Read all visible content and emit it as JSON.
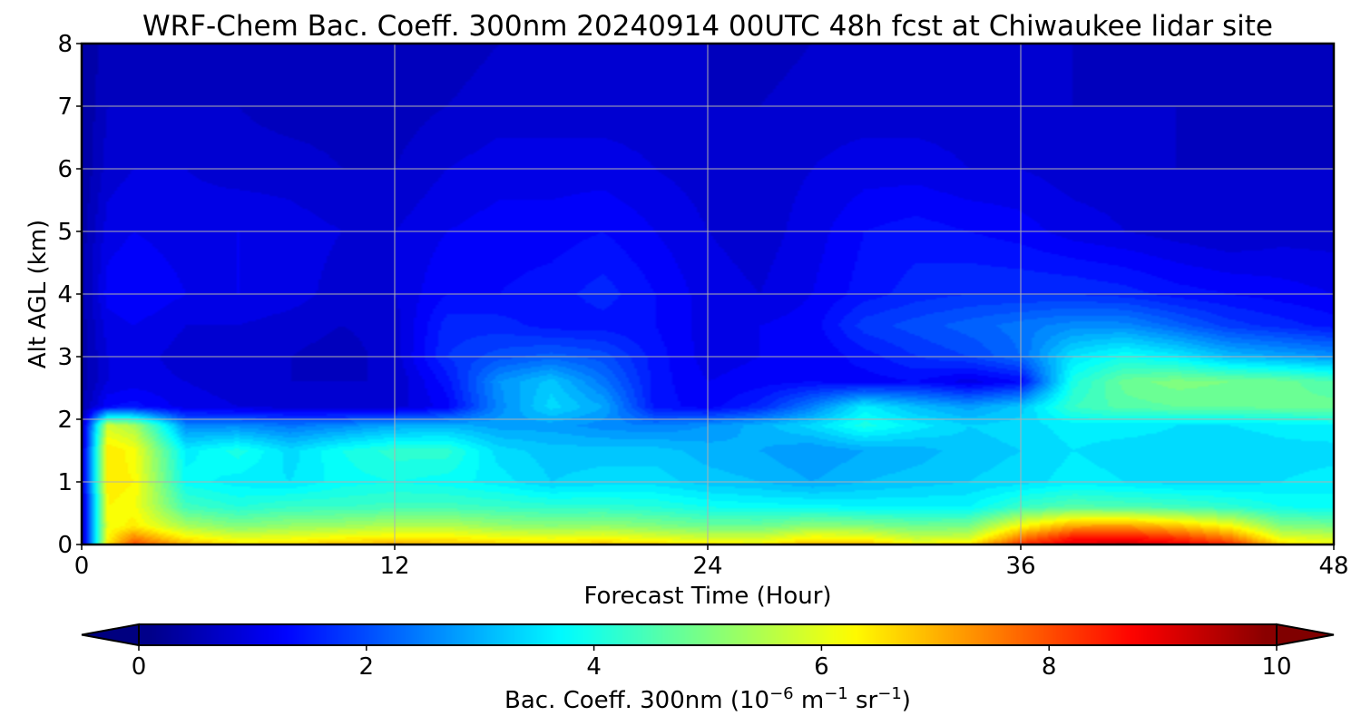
{
  "chart_data": {
    "type": "heatmap",
    "title": "WRF-Chem Bac. Coeff. 300nm  20240914 00UTC 48h fcst at Chiwaukee lidar site",
    "xlabel": "Forecast Time (Hour)",
    "ylabel": "Alt AGL (km)",
    "xlim": [
      0,
      48
    ],
    "ylim": [
      0,
      8
    ],
    "xticks": [
      "0",
      "12",
      "24",
      "36",
      "48"
    ],
    "yticks": [
      "0",
      "1",
      "2",
      "3",
      "4",
      "5",
      "6",
      "7",
      "8"
    ],
    "grid": true,
    "colormap": "jet",
    "colorbar": {
      "orientation": "horizontal",
      "range": [
        0,
        10
      ],
      "ticks": [
        "0",
        "2",
        "4",
        "6",
        "8",
        "10"
      ],
      "extend": "both",
      "label_prefix": "Bac. Coeff. 300nm  (10",
      "label_exp1": "−6",
      "label_mid": " m",
      "label_exp2": "−1",
      "label_mid2": " sr",
      "label_exp3": "−1",
      "label_suffix": ")"
    },
    "hours": [
      0,
      1,
      2,
      4,
      6,
      8,
      10,
      12,
      14,
      16,
      18,
      20,
      22,
      24,
      26,
      28,
      30,
      32,
      34,
      36,
      38,
      40,
      42,
      44,
      46,
      48
    ],
    "altitudes_km": [
      0,
      0.1,
      0.3,
      0.6,
      1.0,
      1.5,
      1.9,
      2.2,
      2.6,
      3.0,
      3.5,
      4.0,
      5.0,
      6.0,
      7.0,
      8.0
    ],
    "values": [
      [
        0.5,
        6.5,
        8.0,
        7.0,
        6.5,
        6.5,
        6.9,
        7.0,
        6.9,
        6.7,
        6.6,
        6.8,
        6.6,
        6.4,
        6.3,
        7.0,
        6.9,
        6.3,
        6.5,
        8.3,
        9.0,
        9.2,
        8.9,
        8.4,
        6.6,
        6.2
      ],
      [
        0.5,
        6.3,
        7.5,
        6.4,
        6.0,
        6.1,
        6.3,
        6.4,
        6.4,
        6.2,
        6.1,
        6.2,
        6.0,
        5.8,
        5.8,
        6.3,
        6.2,
        5.7,
        5.8,
        7.6,
        8.6,
        8.7,
        8.3,
        7.6,
        6.0,
        5.8
      ],
      [
        0.5,
        6.1,
        6.4,
        5.4,
        5.0,
        5.2,
        5.3,
        5.5,
        5.5,
        5.2,
        5.1,
        5.2,
        5.0,
        4.8,
        4.8,
        5.1,
        5.0,
        4.8,
        4.9,
        6.2,
        7.1,
        7.2,
        6.8,
        6.2,
        5.0,
        4.9
      ],
      [
        0.6,
        6.3,
        6.2,
        4.4,
        4.1,
        4.3,
        4.3,
        4.4,
        4.4,
        4.3,
        4.2,
        4.2,
        4.1,
        3.9,
        3.8,
        3.8,
        3.7,
        3.7,
        3.7,
        4.3,
        4.6,
        4.5,
        4.4,
        4.2,
        3.9,
        3.8
      ],
      [
        0.6,
        6.4,
        6.3,
        3.8,
        3.6,
        3.5,
        3.8,
        3.9,
        3.8,
        3.6,
        3.3,
        3.4,
        3.4,
        3.2,
        3.1,
        2.9,
        3.1,
        3.2,
        3.3,
        3.4,
        3.6,
        3.5,
        3.4,
        3.4,
        3.5,
        3.6
      ],
      [
        0.6,
        6.5,
        6.2,
        3.6,
        4.0,
        3.4,
        3.9,
        4.2,
        4.2,
        3.4,
        3.2,
        3.2,
        3.2,
        3.0,
        2.9,
        2.7,
        2.9,
        3.0,
        3.2,
        3.3,
        3.5,
        3.4,
        3.4,
        3.3,
        3.4,
        3.4
      ],
      [
        0.5,
        5.8,
        5.4,
        2.6,
        2.6,
        2.4,
        2.6,
        2.9,
        3.0,
        2.8,
        2.8,
        2.6,
        2.5,
        2.7,
        3.0,
        3.4,
        4.0,
        3.6,
        3.3,
        3.4,
        3.6,
        3.6,
        3.5,
        3.5,
        3.6,
        3.7
      ],
      [
        0.4,
        1.3,
        1.4,
        1.0,
        0.9,
        0.8,
        0.7,
        0.8,
        1.2,
        2.6,
        3.4,
        2.9,
        1.4,
        1.2,
        1.6,
        2.5,
        3.6,
        3.1,
        2.8,
        3.2,
        4.3,
        4.6,
        4.7,
        4.7,
        4.8,
        4.8
      ],
      [
        0.4,
        0.9,
        1.0,
        0.9,
        0.8,
        0.7,
        0.7,
        0.7,
        1.4,
        2.7,
        3.2,
        2.4,
        1.4,
        1.1,
        1.2,
        1.3,
        1.2,
        1.3,
        1.0,
        1.3,
        4.0,
        4.8,
        5.0,
        4.9,
        4.8,
        4.5
      ],
      [
        0.4,
        0.9,
        1.0,
        0.8,
        0.8,
        0.7,
        0.6,
        0.8,
        1.7,
        2.0,
        2.2,
        2.0,
        1.4,
        1.0,
        1.1,
        1.1,
        1.4,
        1.7,
        1.9,
        2.3,
        3.5,
        3.9,
        3.6,
        3.1,
        2.9,
        2.7
      ],
      [
        0.4,
        1.0,
        1.1,
        0.9,
        0.9,
        0.8,
        0.7,
        0.8,
        1.6,
        1.6,
        1.4,
        1.4,
        1.3,
        1.0,
        1.1,
        1.2,
        1.8,
        2.0,
        2.2,
        2.4,
        2.6,
        2.6,
        2.2,
        1.8,
        1.6,
        1.4
      ],
      [
        0.4,
        1.2,
        1.3,
        1.1,
        1.1,
        1.0,
        0.8,
        0.9,
        1.3,
        1.3,
        1.4,
        1.6,
        1.3,
        1.0,
        0.9,
        1.1,
        1.4,
        1.6,
        1.7,
        1.7,
        1.7,
        1.6,
        1.4,
        1.3,
        1.2,
        1.1
      ],
      [
        0.4,
        1.0,
        1.1,
        1.0,
        1.1,
        1.0,
        0.9,
        0.9,
        1.1,
        1.2,
        1.2,
        1.3,
        1.1,
        0.9,
        0.8,
        1.0,
        1.3,
        1.4,
        1.3,
        1.2,
        1.0,
        0.9,
        0.8,
        0.7,
        0.8,
        0.8
      ],
      [
        0.3,
        0.8,
        0.9,
        0.9,
        0.8,
        0.8,
        0.7,
        0.7,
        0.9,
        1.0,
        1.0,
        1.0,
        0.9,
        0.8,
        0.8,
        0.9,
        1.0,
        1.0,
        0.9,
        0.9,
        0.8,
        0.8,
        0.7,
        0.7,
        0.7,
        0.7
      ],
      [
        0.3,
        0.7,
        0.7,
        0.7,
        0.7,
        0.6,
        0.6,
        0.6,
        0.7,
        0.8,
        0.8,
        0.8,
        0.8,
        0.7,
        0.7,
        0.8,
        0.8,
        0.8,
        0.8,
        0.8,
        0.7,
        0.7,
        0.7,
        0.6,
        0.6,
        0.6
      ],
      [
        0.3,
        0.6,
        0.6,
        0.6,
        0.6,
        0.6,
        0.6,
        0.6,
        0.6,
        0.7,
        0.7,
        0.7,
        0.7,
        0.7,
        0.6,
        0.7,
        0.7,
        0.7,
        0.7,
        0.7,
        0.7,
        0.6,
        0.6,
        0.6,
        0.6,
        0.6
      ]
    ]
  }
}
